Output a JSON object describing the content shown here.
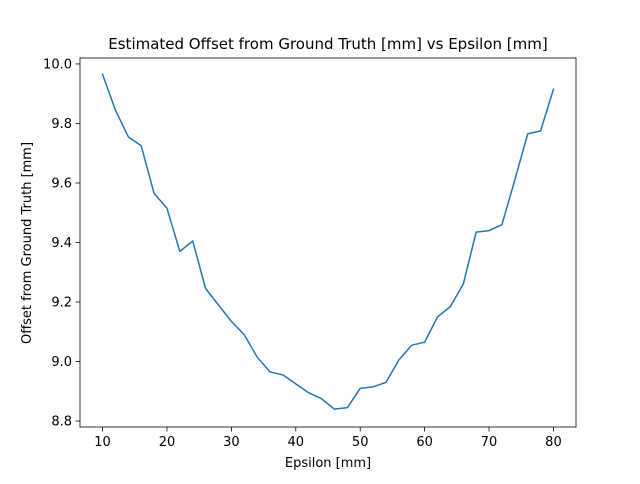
{
  "chart_data": {
    "type": "line",
    "title": "Estimated Offset from Ground Truth [mm] vs Epsilon [mm]",
    "xlabel": "Epsilon [mm]",
    "ylabel": "Offset from Ground Truth [mm]",
    "xlim": [
      6.5,
      83.5
    ],
    "ylim": [
      8.78,
      10.02
    ],
    "x_ticks": [
      10,
      20,
      30,
      40,
      50,
      60,
      70,
      80
    ],
    "y_ticks": [
      8.8,
      9.0,
      9.2,
      9.4,
      9.6,
      9.8,
      10.0
    ],
    "x_tick_labels": [
      "10",
      "20",
      "30",
      "40",
      "50",
      "60",
      "70",
      "80"
    ],
    "y_tick_labels": [
      "8.8",
      "9.0",
      "9.2",
      "9.4",
      "9.6",
      "9.8",
      "10.0"
    ],
    "grid": false,
    "legend": "none",
    "series": [
      {
        "color": "#1f77b4",
        "x": [
          10,
          12,
          14,
          16,
          18,
          20,
          22,
          24,
          26,
          28,
          30,
          32,
          34,
          36,
          38,
          40,
          42,
          44,
          46,
          48,
          50,
          52,
          54,
          56,
          58,
          60,
          62,
          64,
          66,
          68,
          70,
          72,
          74,
          76,
          78,
          80
        ],
        "y": [
          9.965,
          9.845,
          9.755,
          9.725,
          9.565,
          9.515,
          9.37,
          9.405,
          9.245,
          9.19,
          9.135,
          9.09,
          9.015,
          8.965,
          8.955,
          8.925,
          8.895,
          8.875,
          8.84,
          8.845,
          8.91,
          8.915,
          8.93,
          9.005,
          9.055,
          9.065,
          9.15,
          9.185,
          9.26,
          9.435,
          9.44,
          9.46,
          9.61,
          9.765,
          9.775,
          9.915
        ]
      }
    ]
  }
}
